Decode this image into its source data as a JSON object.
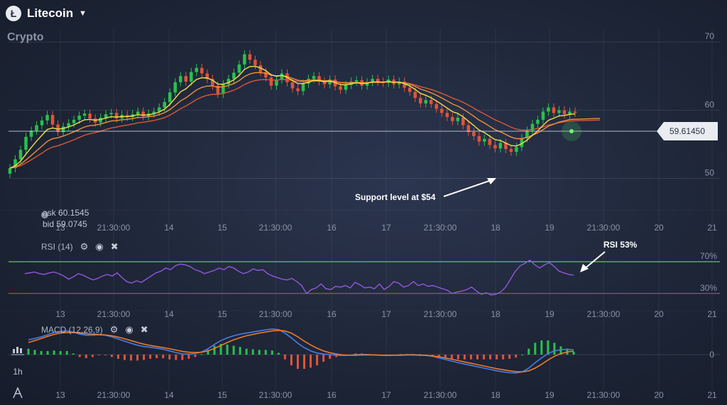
{
  "header": {
    "title": "Litecoin",
    "subtitle": "Crypto"
  },
  "quote": {
    "ask_label": "ask",
    "ask": "60.1545",
    "bid_label": "bid",
    "bid": "59.0745"
  },
  "current_price": "59.61450",
  "annotations": {
    "support": "Support level at $54",
    "rsi": "RSI 53%"
  },
  "indicators": {
    "rsi_label": "RSI (14)",
    "macd_label": "MACD (12,26,9)"
  },
  "toolbar": {
    "timeframe": "1h"
  },
  "colors": {
    "up": "#27c24c",
    "down": "#e2533a",
    "ma_fast": "#f2e14b",
    "ma_mid": "#f0913a",
    "ma_slow": "#d9573a",
    "rsi": "#9b59e6",
    "macd": "#4a7de8",
    "signal": "#f07b2a",
    "rsi_upper": "#7fe86a",
    "rsi_lower": "#d9573a"
  },
  "chart_data": {
    "type": "candlestick",
    "x_ticks": [
      "13",
      "21:30:00",
      "14",
      "15",
      "21:30:00",
      "16",
      "17",
      "21:30:00",
      "18",
      "19",
      "21:30:00",
      "20",
      "21"
    ],
    "price_axis": {
      "ticks": [
        "70",
        "60",
        "50"
      ],
      "ylim": [
        46,
        72
      ]
    },
    "ohlc_close": [
      51.5,
      52.8,
      54.2,
      56.1,
      57.0,
      57.8,
      58.5,
      59.3,
      57.9,
      56.8,
      57.6,
      58.1,
      58.6,
      59.2,
      59.5,
      58.8,
      58.2,
      58.9,
      59.4,
      59.6,
      58.8,
      59.3,
      59.0,
      59.4,
      59.8,
      59.1,
      59.5,
      59.8,
      60.4,
      61.2,
      62.6,
      64.1,
      65.0,
      64.2,
      65.6,
      66.2,
      65.4,
      64.6,
      63.6,
      62.4,
      63.8,
      64.6,
      65.5,
      66.7,
      68.2,
      67.4,
      66.6,
      65.6,
      64.8,
      63.6,
      64.5,
      65.4,
      64.1,
      63.2,
      62.8,
      63.9,
      64.6,
      65.0,
      64.2,
      63.8,
      64.5,
      63.5,
      63.0,
      63.7,
      64.2,
      64.4,
      63.6,
      64.1,
      64.6,
      64.2,
      64.0,
      64.5,
      63.8,
      64.2,
      63.3,
      62.7,
      61.8,
      61.0,
      61.5,
      60.9,
      60.2,
      59.6,
      59.0,
      58.4,
      58.9,
      57.8,
      56.8,
      56.2,
      55.4,
      55.8,
      54.9,
      54.4,
      55.2,
      54.3,
      53.9,
      54.6,
      55.9,
      57.0,
      58.0,
      58.6,
      59.8,
      60.4,
      59.6,
      60.0,
      59.4,
      59.8,
      59.6
    ],
    "rsi": {
      "levels": [
        "70%",
        "30%"
      ],
      "values": [
        55,
        56,
        57,
        55,
        54,
        56,
        57,
        55,
        52,
        48,
        51,
        55,
        53,
        50,
        47,
        49,
        52,
        54,
        52,
        56,
        50,
        45,
        43,
        46,
        44,
        48,
        52,
        56,
        58,
        62,
        60,
        65,
        67,
        66,
        64,
        60,
        58,
        55,
        57,
        59,
        62,
        60,
        64,
        62,
        58,
        55,
        57,
        61,
        59,
        60,
        55,
        52,
        50,
        48,
        47,
        49,
        45,
        40,
        30,
        35,
        37,
        42,
        36,
        35,
        39,
        38,
        40,
        37,
        44,
        41,
        37,
        38,
        36,
        42,
        35,
        39,
        45,
        43,
        38,
        40,
        45,
        40,
        42,
        39,
        40,
        38,
        36,
        34,
        30,
        32,
        33,
        35,
        38,
        33,
        29,
        31,
        28,
        29,
        32,
        38,
        48,
        58,
        65,
        68,
        72,
        66,
        62,
        66,
        69,
        64,
        58,
        56,
        54,
        53
      ]
    },
    "macd": {
      "zero_label": "0",
      "macd": [
        0.55,
        0.6,
        0.66,
        0.74,
        0.82,
        0.86,
        0.88,
        0.84,
        0.76,
        0.72,
        0.72,
        0.74,
        0.72,
        0.66,
        0.58,
        0.5,
        0.42,
        0.35,
        0.3,
        0.27,
        0.24,
        0.2,
        0.14,
        0.08,
        0.03,
        0.02,
        0.04,
        0.1,
        0.22,
        0.38,
        0.52,
        0.62,
        0.7,
        0.76,
        0.8,
        0.84,
        0.88,
        0.92,
        0.95,
        0.93,
        0.8,
        0.62,
        0.42,
        0.26,
        0.14,
        0.06,
        0.02,
        0.0,
        -0.02,
        -0.03,
        -0.02,
        0.0,
        0.01,
        0.0,
        -0.01,
        -0.02,
        -0.03,
        -0.02,
        -0.01,
        0.0,
        0.0,
        -0.01,
        -0.03,
        -0.06,
        -0.12,
        -0.18,
        -0.24,
        -0.3,
        -0.35,
        -0.4,
        -0.45,
        -0.5,
        -0.55,
        -0.6,
        -0.64,
        -0.67,
        -0.68,
        -0.64,
        -0.5,
        -0.3,
        -0.12,
        0.04,
        0.14,
        0.18,
        0.2,
        0.18
      ],
      "signal": [
        0.45,
        0.52,
        0.6,
        0.68,
        0.75,
        0.8,
        0.82,
        0.82,
        0.8,
        0.78,
        0.76,
        0.75,
        0.73,
        0.7,
        0.65,
        0.59,
        0.52,
        0.45,
        0.39,
        0.34,
        0.3,
        0.26,
        0.22,
        0.17,
        0.12,
        0.09,
        0.08,
        0.09,
        0.14,
        0.23,
        0.34,
        0.45,
        0.55,
        0.63,
        0.7,
        0.75,
        0.8,
        0.84,
        0.88,
        0.9,
        0.88,
        0.8,
        0.66,
        0.5,
        0.36,
        0.24,
        0.14,
        0.07,
        0.02,
        -0.01,
        -0.02,
        -0.02,
        -0.01,
        -0.01,
        -0.01,
        -0.02,
        -0.02,
        -0.02,
        -0.02,
        -0.01,
        -0.01,
        -0.02,
        -0.03,
        -0.05,
        -0.08,
        -0.12,
        -0.17,
        -0.22,
        -0.27,
        -0.32,
        -0.37,
        -0.42,
        -0.47,
        -0.52,
        -0.56,
        -0.6,
        -0.63,
        -0.64,
        -0.6,
        -0.5,
        -0.36,
        -0.2,
        -0.06,
        0.04,
        0.1,
        0.13
      ]
    }
  }
}
